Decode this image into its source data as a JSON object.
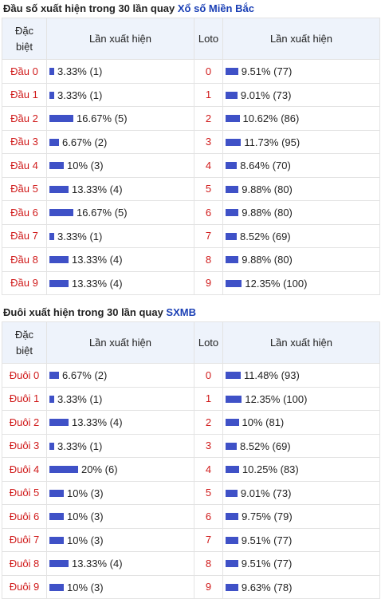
{
  "section1": {
    "title_prefix": "Đầu số xuất hiện trong 30 lần quay ",
    "title_link": "Xổ số Miền Bắc",
    "headers": {
      "col1_line1": "Đặc",
      "col1_line2": "biệt",
      "col2": "Lần xuất hiện",
      "col3": "Loto",
      "col4": "Lần xuất hiện"
    },
    "rows": [
      {
        "head": "Đầu 0",
        "pct": "3.33% (1)",
        "pct_value": 3.33,
        "loto": "0",
        "loto_pct": "9.51% (77)",
        "loto_value": 9.51
      },
      {
        "head": "Đầu 1",
        "pct": "3.33% (1)",
        "pct_value": 3.33,
        "loto": "1",
        "loto_pct": "9.01% (73)",
        "loto_value": 9.01
      },
      {
        "head": "Đầu 2",
        "pct": "16.67% (5)",
        "pct_value": 16.67,
        "loto": "2",
        "loto_pct": "10.62% (86)",
        "loto_value": 10.62
      },
      {
        "head": "Đầu 3",
        "pct": "6.67% (2)",
        "pct_value": 6.67,
        "loto": "3",
        "loto_pct": "11.73% (95)",
        "loto_value": 11.73
      },
      {
        "head": "Đầu 4",
        "pct": "10% (3)",
        "pct_value": 10,
        "loto": "4",
        "loto_pct": "8.64% (70)",
        "loto_value": 8.64
      },
      {
        "head": "Đầu 5",
        "pct": "13.33% (4)",
        "pct_value": 13.33,
        "loto": "5",
        "loto_pct": "9.88% (80)",
        "loto_value": 9.88
      },
      {
        "head": "Đầu 6",
        "pct": "16.67% (5)",
        "pct_value": 16.67,
        "loto": "6",
        "loto_pct": "9.88% (80)",
        "loto_value": 9.88
      },
      {
        "head": "Đầu 7",
        "pct": "3.33% (1)",
        "pct_value": 3.33,
        "loto": "7",
        "loto_pct": "8.52% (69)",
        "loto_value": 8.52
      },
      {
        "head": "Đầu 8",
        "pct": "13.33% (4)",
        "pct_value": 13.33,
        "loto": "8",
        "loto_pct": "9.88% (80)",
        "loto_value": 9.88
      },
      {
        "head": "Đầu 9",
        "pct": "13.33% (4)",
        "pct_value": 13.33,
        "loto": "9",
        "loto_pct": "12.35% (100)",
        "loto_value": 12.35
      }
    ]
  },
  "section2": {
    "title_prefix": "Đuôi xuất hiện trong 30 lần quay ",
    "title_link": "SXMB",
    "headers": {
      "col1_line1": "Đặc",
      "col1_line2": "biệt",
      "col2": "Lần xuất hiện",
      "col3": "Loto",
      "col4": "Lần xuất hiện"
    },
    "rows": [
      {
        "head": "Đuôi 0",
        "pct": "6.67% (2)",
        "pct_value": 6.67,
        "loto": "0",
        "loto_pct": "11.48% (93)",
        "loto_value": 11.48
      },
      {
        "head": "Đuôi 1",
        "pct": "3.33% (1)",
        "pct_value": 3.33,
        "loto": "1",
        "loto_pct": "12.35% (100)",
        "loto_value": 12.35
      },
      {
        "head": "Đuôi 2",
        "pct": "13.33% (4)",
        "pct_value": 13.33,
        "loto": "2",
        "loto_pct": "10% (81)",
        "loto_value": 10
      },
      {
        "head": "Đuôi 3",
        "pct": "3.33% (1)",
        "pct_value": 3.33,
        "loto": "3",
        "loto_pct": "8.52% (69)",
        "loto_value": 8.52
      },
      {
        "head": "Đuôi 4",
        "pct": "20% (6)",
        "pct_value": 20,
        "loto": "4",
        "loto_pct": "10.25% (83)",
        "loto_value": 10.25
      },
      {
        "head": "Đuôi 5",
        "pct": "10% (3)",
        "pct_value": 10,
        "loto": "5",
        "loto_pct": "9.01% (73)",
        "loto_value": 9.01
      },
      {
        "head": "Đuôi 6",
        "pct": "10% (3)",
        "pct_value": 10,
        "loto": "6",
        "loto_pct": "9.75% (79)",
        "loto_value": 9.75
      },
      {
        "head": "Đuôi 7",
        "pct": "10% (3)",
        "pct_value": 10,
        "loto": "7",
        "loto_pct": "9.51% (77)",
        "loto_value": 9.51
      },
      {
        "head": "Đuôi 8",
        "pct": "13.33% (4)",
        "pct_value": 13.33,
        "loto": "8",
        "loto_pct": "9.51% (77)",
        "loto_value": 9.51
      },
      {
        "head": "Đuôi 9",
        "pct": "10% (3)",
        "pct_value": 10,
        "loto": "9",
        "loto_pct": "9.63% (78)",
        "loto_value": 9.63
      }
    ]
  },
  "colors": {
    "bar": "#3f51c7",
    "head_text": "#d01a1a",
    "link": "#1a3fb5",
    "header_bg": "#eef3fb"
  }
}
